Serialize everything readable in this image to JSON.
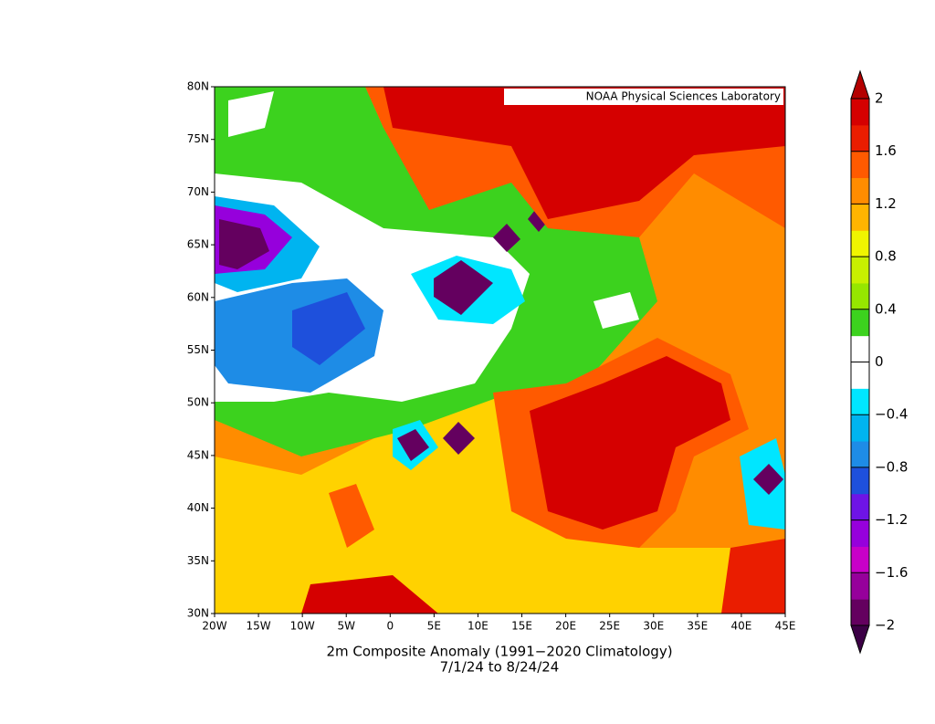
{
  "map": {
    "credit": "NOAA Physical Sciences Laboratory",
    "title_line1": "2m    Composite Anomaly (1991−2020 Climatology)",
    "title_line2": "7/1/24   to 8/24/24",
    "lat_labels": [
      "80N",
      "75N",
      "70N",
      "65N",
      "60N",
      "55N",
      "50N",
      "45N",
      "40N",
      "35N",
      "30N"
    ],
    "lon_labels": [
      "20W",
      "15W",
      "10W",
      "5W",
      "0",
      "5E",
      "10E",
      "15E",
      "20E",
      "25E",
      "30E",
      "35E",
      "40E",
      "45E"
    ],
    "colorbar": {
      "lim": [
        -2,
        2
      ],
      "ticks": [
        2,
        1.6,
        1.2,
        0.8,
        0.4,
        0,
        {
          "value": -0.4,
          "label": "−0.4"
        },
        {
          "value": -0.8,
          "label": "−0.8"
        },
        {
          "value": -1.2,
          "label": "−1.2"
        },
        {
          "value": -1.6,
          "label": "−1.6"
        },
        {
          "value": -2,
          "label": "−2"
        }
      ],
      "colors": [
        "#64005f",
        "#96009b",
        "#c800c8",
        "#9600dc",
        "#6e14e6",
        "#1e50dc",
        "#1e8ce6",
        "#00b4f0",
        "#00e6ff",
        "#ffffff",
        "#ffffff",
        "#3cd21e",
        "#96e600",
        "#c8f000",
        "#f0f500",
        "#ffb400",
        "#ff8c00",
        "#ff5a00",
        "#ea1d00",
        "#d50000"
      ],
      "under_color": "#3c0046",
      "over_color": "#b40000"
    }
  }
}
